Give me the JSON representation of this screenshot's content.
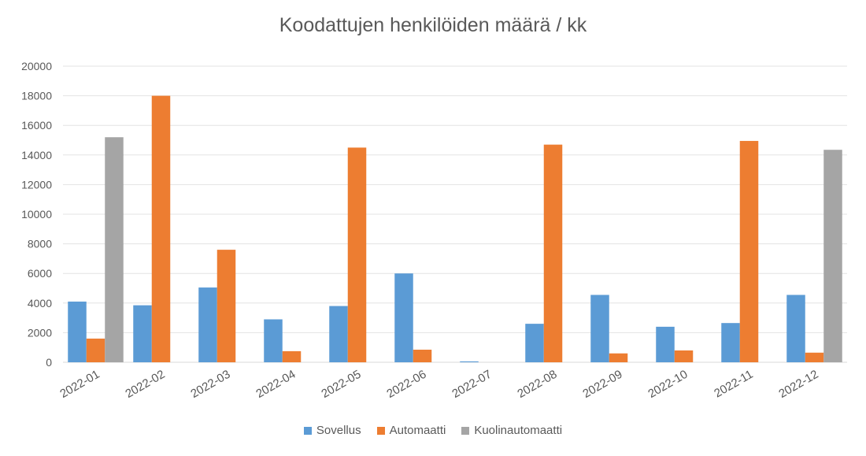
{
  "chart_data": {
    "type": "bar",
    "title": "Koodattujen henkilöiden määrä / kk",
    "xlabel": "",
    "ylabel": "",
    "categories": [
      "2022-01",
      "2022-02",
      "2022-03",
      "2022-04",
      "2022-05",
      "2022-06",
      "2022-07",
      "2022-08",
      "2022-09",
      "2022-10",
      "2022-11",
      "2022-12"
    ],
    "series": [
      {
        "name": "Sovellus",
        "color": "#5B9BD5",
        "values": [
          4100,
          3850,
          5050,
          2900,
          3800,
          6000,
          60,
          2600,
          4550,
          2400,
          2650,
          4550
        ]
      },
      {
        "name": "Automaatti",
        "color": "#ED7D31",
        "values": [
          1600,
          18000,
          7600,
          750,
          14500,
          850,
          0,
          14700,
          600,
          800,
          14950,
          650
        ]
      },
      {
        "name": "Kuolinautomaatti",
        "color": "#A5A5A5",
        "values": [
          15200,
          0,
          0,
          0,
          0,
          0,
          0,
          0,
          0,
          0,
          0,
          14350
        ]
      }
    ],
    "ylim": [
      0,
      20000
    ],
    "yticks": [
      0,
      2000,
      4000,
      6000,
      8000,
      10000,
      12000,
      14000,
      16000,
      18000,
      20000
    ],
    "grid": true,
    "legend_position": "bottom"
  }
}
